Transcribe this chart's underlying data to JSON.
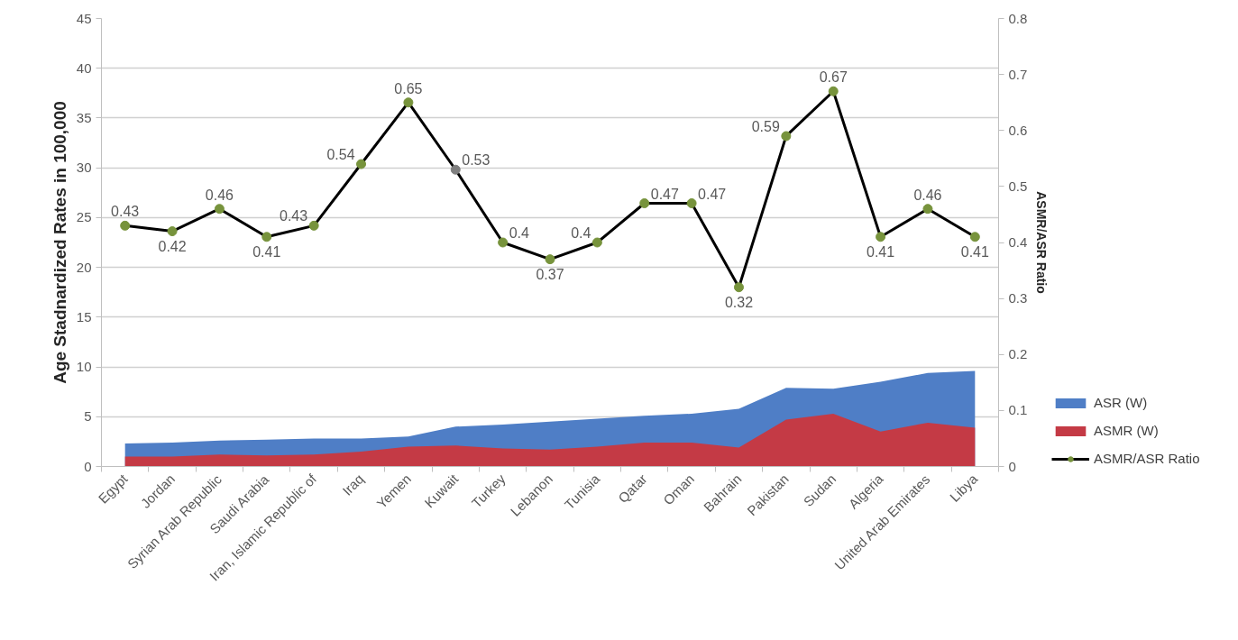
{
  "chart_data": {
    "type": "area",
    "ylabel": "Age Stadnardized Rates in 100,000",
    "y2label": "ASMR/ASR Ratio",
    "categories": [
      "Egypt",
      "Jordan",
      "Syrian Arab Republic",
      "Saudi Arabia",
      "Iran, Islamic Republic of",
      "Iraq",
      "Yemen",
      "Kuwait",
      "Turkey",
      "Lebanon",
      "Tunisia",
      "Qatar",
      "Oman",
      "Bahrain",
      "Pakistan",
      "Sudan",
      "Algeria",
      "United Arab Emirates",
      "Libya"
    ],
    "series": [
      {
        "name": "ASR (W)",
        "color": "#4f7ec6",
        "values": [
          2.3,
          2.4,
          2.6,
          2.7,
          2.8,
          2.8,
          3.0,
          4.0,
          4.2,
          4.5,
          4.8,
          5.1,
          5.3,
          5.8,
          7.9,
          7.8,
          8.5,
          9.4,
          9.6
        ]
      },
      {
        "name": "ASMR (W)",
        "color": "#c43a45",
        "values": [
          1.0,
          1.0,
          1.2,
          1.1,
          1.2,
          1.5,
          2.0,
          2.1,
          1.8,
          1.7,
          2.0,
          2.4,
          2.4,
          1.9,
          4.7,
          5.3,
          3.5,
          4.4,
          3.9
        ]
      },
      {
        "name": "ASMR/ASR Ratio",
        "type": "line",
        "axis": "y2",
        "color": "#000000",
        "marker": "circle",
        "data_labels": true,
        "colors": [
          "#77933c",
          "#77933c",
          "#77933c",
          "#77933c",
          "#77933c",
          "#77933c",
          "#77933c",
          "#7f7f7f",
          "#77933c",
          "#77933c",
          "#77933c",
          "#77933c",
          "#77933c",
          "#77933c",
          "#77933c",
          "#77933c",
          "#77933c",
          "#77933c",
          "#77933c"
        ],
        "values": [
          0.43,
          0.42,
          0.46,
          0.41,
          0.43,
          0.54,
          0.65,
          0.53,
          0.4,
          0.37,
          0.4,
          0.47,
          0.47,
          0.32,
          0.59,
          0.67,
          0.41,
          0.46,
          0.41
        ]
      }
    ],
    "ylim": [
      0,
      45
    ],
    "yticks": [
      0,
      5,
      10,
      15,
      20,
      25,
      30,
      35,
      40,
      45
    ],
    "y2lim": [
      0,
      0.8
    ],
    "y2ticks": [
      0,
      0.1,
      0.2,
      0.3,
      0.4,
      0.5,
      0.6,
      0.7,
      0.8
    ],
    "grid": "y",
    "legend": "bottom right"
  }
}
